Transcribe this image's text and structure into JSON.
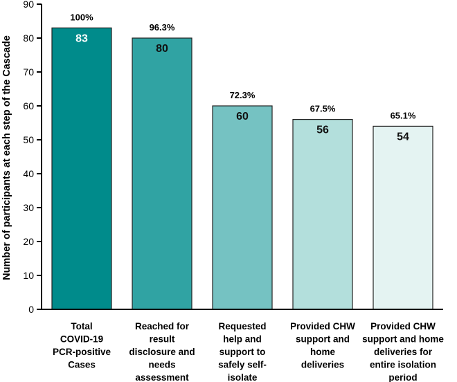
{
  "chart_data": {
    "type": "bar",
    "title": "",
    "xlabel": "",
    "ylabel": "Number of participants at each step of the Cascade",
    "ylim": [
      0,
      90
    ],
    "yticks": [
      0,
      10,
      20,
      30,
      40,
      50,
      60,
      70,
      80,
      90
    ],
    "grid": false,
    "categories": [
      [
        "Total",
        "COVID-19",
        "PCR-positive",
        "Cases"
      ],
      [
        "Reached for",
        "result",
        "disclosure and",
        "needs",
        "assessment"
      ],
      [
        "Requested",
        "help and",
        "support to",
        "safely self-",
        "isolate"
      ],
      [
        "Provided CHW",
        "support and",
        "home",
        "deliveries"
      ],
      [
        "Provided CHW",
        "support and home",
        "deliveries for",
        "entire isolation",
        "period"
      ]
    ],
    "values": [
      83,
      80,
      60,
      56,
      54
    ],
    "percent_labels": [
      "100%",
      "96.3%",
      "72.3%",
      "67.5%",
      "65.1%"
    ],
    "bar_colors": [
      "#008b8b",
      "#30a3a3",
      "#75c2c2",
      "#b3dfdc",
      "#e4f3f2"
    ],
    "value_label_colors": [
      "#ffffff",
      "#111111",
      "#111111",
      "#111111",
      "#111111"
    ],
    "edge_color": "#222222"
  }
}
